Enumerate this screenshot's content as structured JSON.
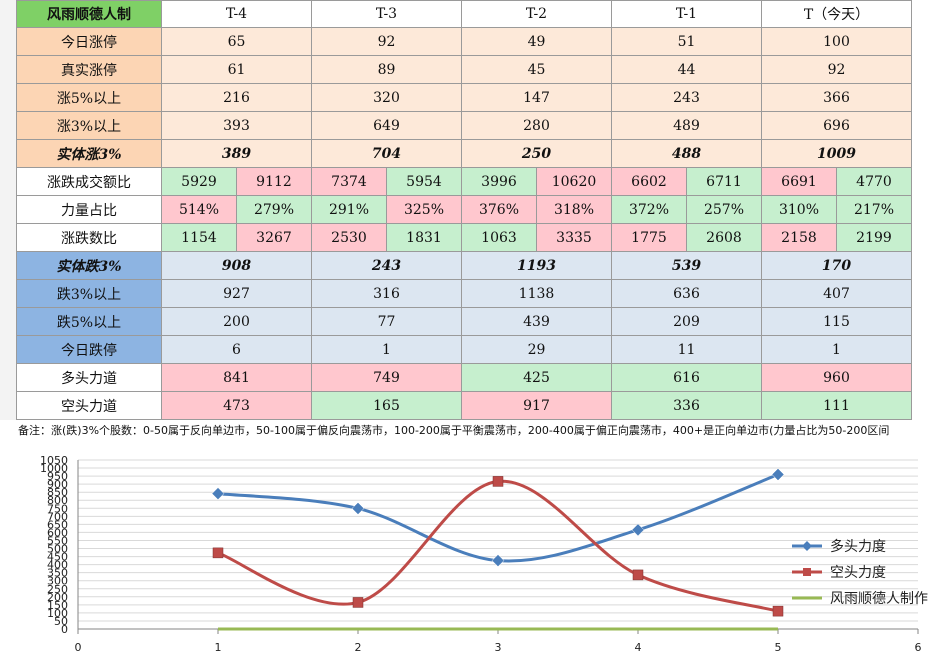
{
  "table": {
    "title": "风雨顺德人制",
    "columns": [
      "T-4",
      "T-3",
      "T-2",
      "T-1",
      "T（今天）"
    ],
    "rows": [
      {
        "label": "今日涨停",
        "values": [
          "65",
          "92",
          "49",
          "51",
          "100"
        ]
      },
      {
        "label": "真实涨停",
        "values": [
          "61",
          "89",
          "45",
          "44",
          "92"
        ]
      },
      {
        "label": "涨5%以上",
        "values": [
          "216",
          "320",
          "147",
          "243",
          "366"
        ]
      },
      {
        "label": "涨3%以上",
        "values": [
          "393",
          "649",
          "280",
          "489",
          "696"
        ]
      },
      {
        "label": "实体涨3%",
        "values": [
          "389",
          "704",
          "250",
          "488",
          "1009"
        ]
      },
      {
        "label": "涨跌成交额比",
        "values": [
          "5929",
          "9112",
          "7374",
          "5954",
          "3996",
          "10620",
          "6602",
          "6711",
          "6691",
          "4770"
        ]
      },
      {
        "label": "力量占比",
        "values": [
          "514%",
          "279%",
          "291%",
          "325%",
          "376%",
          "318%",
          "372%",
          "257%",
          "310%",
          "217%"
        ]
      },
      {
        "label": "涨跌数比",
        "values": [
          "1154",
          "3267",
          "2530",
          "1831",
          "1063",
          "3335",
          "1775",
          "2608",
          "2158",
          "2199"
        ]
      },
      {
        "label": "实体跌3%",
        "values": [
          "908",
          "243",
          "1193",
          "539",
          "170"
        ]
      },
      {
        "label": "跌3%以上",
        "values": [
          "927",
          "316",
          "1138",
          "636",
          "407"
        ]
      },
      {
        "label": "跌5%以上",
        "values": [
          "200",
          "77",
          "439",
          "209",
          "115"
        ]
      },
      {
        "label": "今日跌停",
        "values": [
          "6",
          "1",
          "29",
          "11",
          "1"
        ]
      },
      {
        "label": "多头力道",
        "values": [
          "841",
          "749",
          "425",
          "616",
          "960"
        ]
      },
      {
        "label": "空头力道",
        "values": [
          "473",
          "165",
          "917",
          "336",
          "111"
        ]
      }
    ]
  },
  "note": "备注：涨(跌)3%个股数：0-50属于反向单边市，50-100属于偏反向震荡市，100-200属于平衡震荡市，200-400属于偏正向震荡市，400+是正向单边市(力量占比为50-200区间",
  "colors": {
    "bull": "#4a7ebb",
    "bear": "#be4b48",
    "author": "#98b954",
    "grid": "#d9d9d9",
    "axis": "#868686"
  },
  "chart_data": {
    "type": "line",
    "x_ticks": [
      "0",
      "1",
      "2",
      "3",
      "4",
      "5",
      "6"
    ],
    "y_ticks": [
      "0",
      "50",
      "100",
      "150",
      "200",
      "250",
      "300",
      "350",
      "400",
      "450",
      "500",
      "550",
      "600",
      "650",
      "700",
      "750",
      "800",
      "850",
      "900",
      "950",
      "1000",
      "1050"
    ],
    "xlim": [
      0,
      6
    ],
    "ylim": [
      0,
      1050
    ],
    "grid": true,
    "legend_position": "right",
    "series": [
      {
        "name": "多头力度",
        "x": [
          1,
          2,
          3,
          4,
          5
        ],
        "values": [
          841,
          749,
          425,
          616,
          960
        ],
        "marker": "diamond",
        "color": "#4a7ebb"
      },
      {
        "name": "空头力度",
        "x": [
          1,
          2,
          3,
          4,
          5
        ],
        "values": [
          473,
          165,
          917,
          336,
          111
        ],
        "marker": "square",
        "color": "#be4b48"
      },
      {
        "name": "风雨顺德人制作",
        "x": [
          1,
          2,
          3,
          4,
          5
        ],
        "values": [
          0,
          0,
          0,
          0,
          0
        ],
        "marker": "none",
        "color": "#98b954"
      }
    ]
  }
}
